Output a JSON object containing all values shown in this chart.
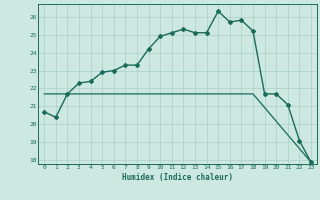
{
  "xlabel": "Humidex (Indice chaleur)",
  "background_color": "#cce8e0",
  "grid_color": "#aacfc8",
  "line_color": "#1a6b5a",
  "xlim_min": -0.5,
  "xlim_max": 23.5,
  "ylim_min": 17.8,
  "ylim_max": 26.7,
  "yticks": [
    18,
    19,
    20,
    21,
    22,
    23,
    24,
    25,
    26
  ],
  "xticks": [
    0,
    1,
    2,
    3,
    4,
    5,
    6,
    7,
    8,
    9,
    10,
    11,
    12,
    13,
    14,
    15,
    16,
    17,
    18,
    19,
    20,
    21,
    22,
    23
  ],
  "curve1_x": [
    0,
    1,
    2,
    3,
    4,
    5,
    6,
    7,
    8,
    9,
    10,
    11,
    12,
    13,
    14,
    15,
    16,
    17,
    18,
    19,
    20,
    21,
    22,
    23
  ],
  "curve1_y": [
    20.7,
    20.4,
    21.7,
    22.3,
    22.4,
    22.9,
    23.0,
    23.3,
    23.3,
    24.2,
    24.9,
    25.1,
    25.3,
    25.1,
    25.1,
    26.3,
    25.7,
    25.8,
    25.2,
    21.7,
    21.7,
    21.1,
    19.1,
    17.9
  ],
  "curve2_x": [
    0,
    18,
    23
  ],
  "curve2_y": [
    21.7,
    21.7,
    17.9
  ]
}
